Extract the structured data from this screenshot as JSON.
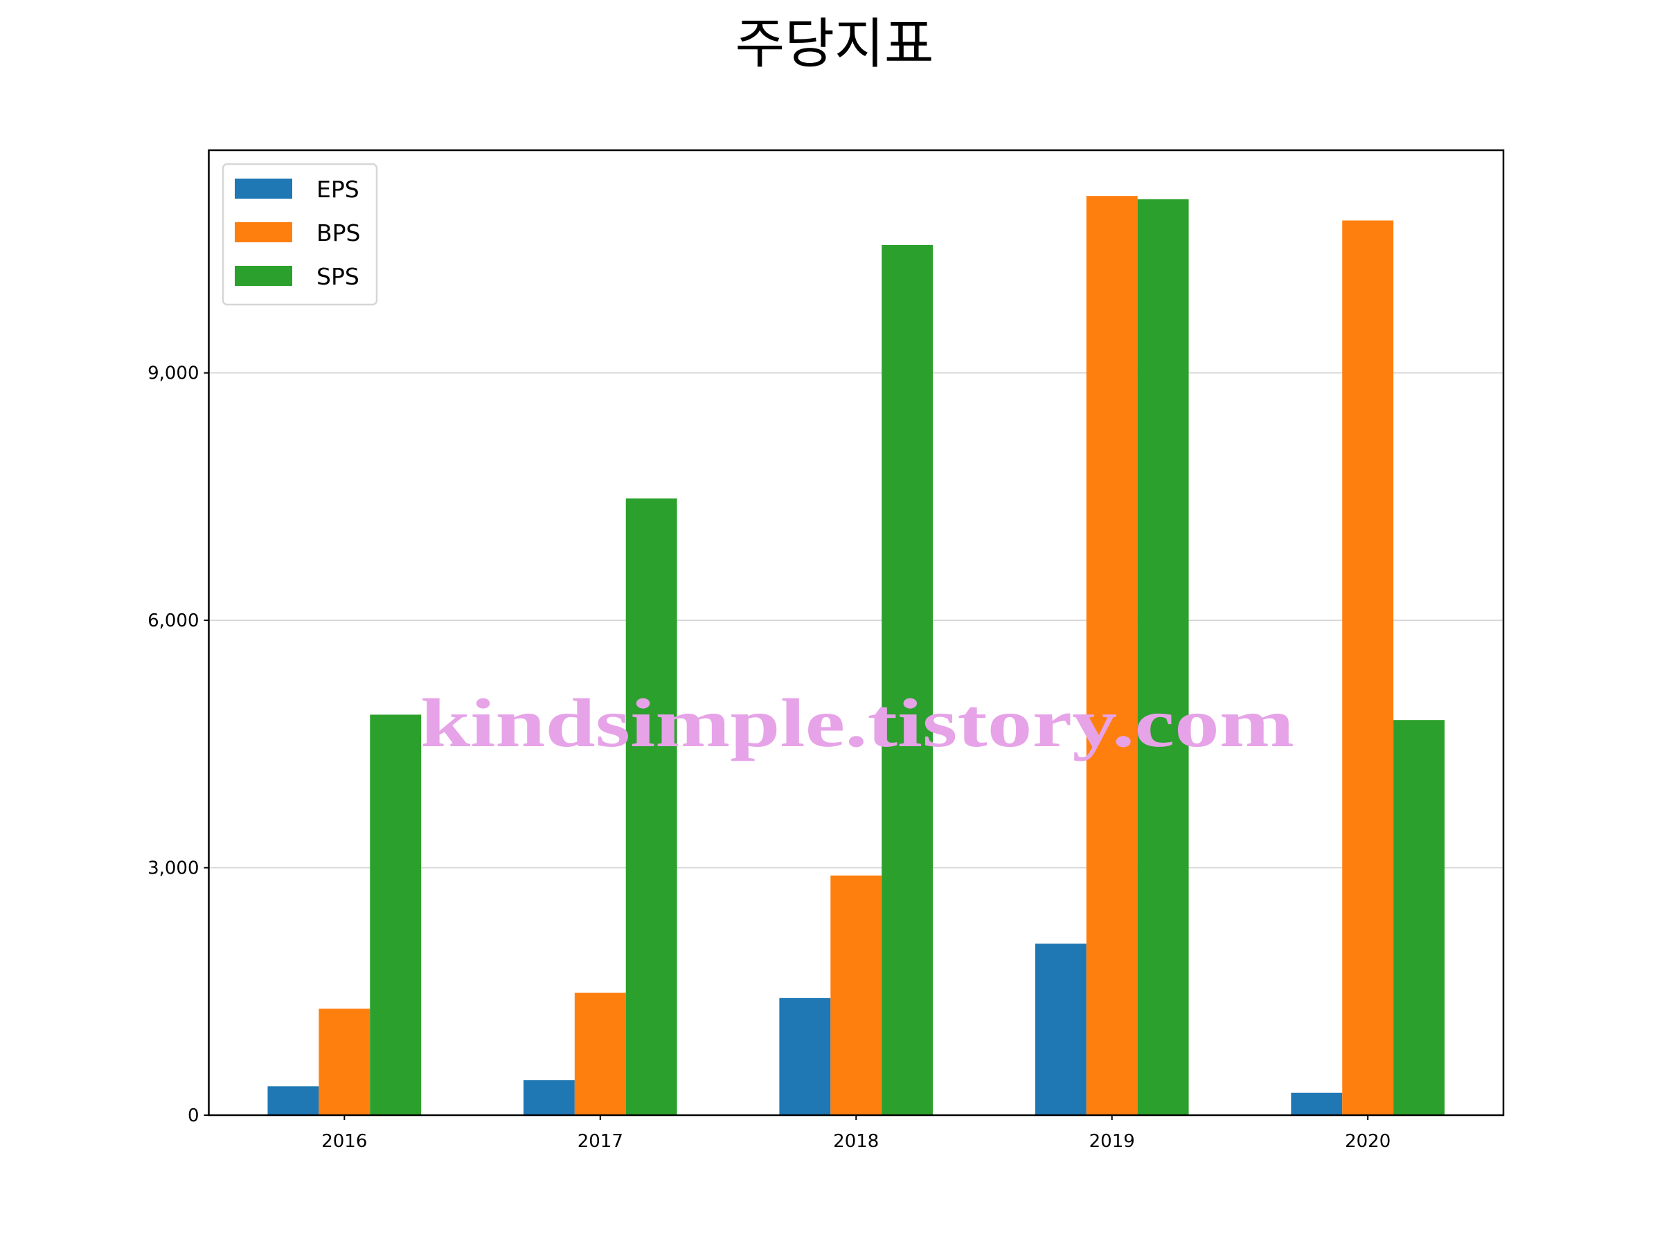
{
  "chart_data": {
    "type": "bar",
    "title": "주당지표",
    "xlabel": "",
    "ylabel": "",
    "categories": [
      "2016",
      "2017",
      "2018",
      "2019",
      "2020"
    ],
    "series": [
      {
        "name": "EPS",
        "color": "#1f77b4",
        "values": [
          350,
          426,
          1420,
          2079,
          271
        ]
      },
      {
        "name": "BPS",
        "color": "#ff7f0e",
        "values": [
          1291,
          1485,
          2906,
          11145,
          10848
        ]
      },
      {
        "name": "SPS",
        "color": "#2ca02c",
        "values": [
          4856,
          7477,
          10551,
          11106,
          4791
        ]
      }
    ],
    "ylim": [
      0,
      11700
    ],
    "yticks": [
      0,
      3000,
      6000,
      9000
    ],
    "ytick_labels": [
      "0",
      "3,000",
      "6,000",
      "9,000"
    ],
    "grid": "y",
    "legend_placement": "top-left",
    "watermark": "kindsimple.tistory.com",
    "watermark_color": "#e6a3e8"
  }
}
